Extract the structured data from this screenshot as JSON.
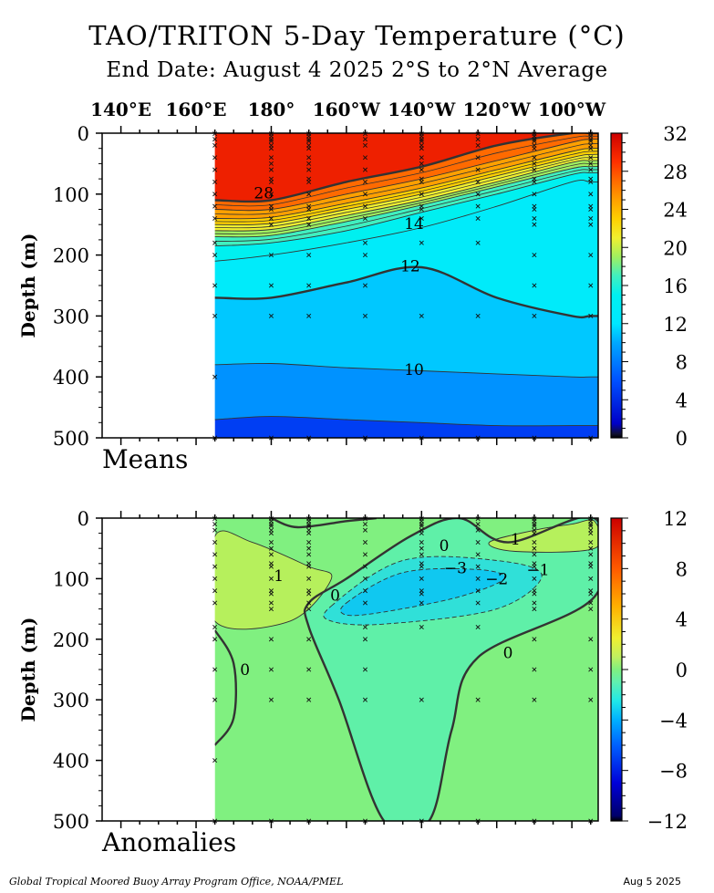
{
  "header": {
    "title": "TAO/TRITON 5-Day Temperature (°C)",
    "subtitle": "End Date: August 4 2025   2°S to 2°N Average"
  },
  "footer": {
    "credit": "Global Tropical Moored Buoy Array Program Office, NOAA/PMEL",
    "date": "Aug  5 2025"
  },
  "colors": {
    "warm": "#dd1111",
    "orange": "#ff8800",
    "yellow": "#f0f030",
    "cyan": "#00f0f0",
    "blue": "#0070e0",
    "dark_blue": "#0000a0",
    "anomaly_neutral": "#80f080",
    "contour": "#333333"
  },
  "chart_data": [
    {
      "type": "heatmap",
      "panel_label": "Means",
      "ylabel": "Depth (m)",
      "x_tick_labels": [
        "140°E",
        "160°E",
        "180°",
        "160°W",
        "140°W",
        "120°W",
        "100°W"
      ],
      "x_ticks_lon": [
        140,
        160,
        180,
        200,
        220,
        240,
        260
      ],
      "xlim_lon": [
        135,
        267
      ],
      "data_start_lon": 165,
      "ylim": [
        500,
        0
      ],
      "y_ticks": [
        0,
        100,
        200,
        300,
        400,
        500
      ],
      "colorbar_ticks": [
        0,
        4,
        8,
        12,
        16,
        20,
        24,
        28,
        32
      ],
      "colorbar_range": [
        0,
        32
      ],
      "contour_labels": [
        "28",
        "14",
        "12",
        "10"
      ],
      "profile_lons": [
        165,
        180,
        200,
        220,
        240,
        260,
        265
      ],
      "isotherm_depths": [
        {
          "value": 28,
          "depth": [
            110,
            110,
            80,
            55,
            20,
            0,
            0
          ]
        },
        {
          "value": 26,
          "depth": [
            125,
            125,
            100,
            75,
            45,
            15,
            10
          ]
        },
        {
          "value": 24,
          "depth": [
            140,
            138,
            115,
            90,
            60,
            30,
            25
          ]
        },
        {
          "value": 22,
          "depth": [
            150,
            148,
            125,
            100,
            70,
            40,
            35
          ]
        },
        {
          "value": 20,
          "depth": [
            160,
            158,
            135,
            110,
            80,
            48,
            45
          ]
        },
        {
          "value": 18,
          "depth": [
            170,
            168,
            145,
            118,
            88,
            58,
            55
          ]
        },
        {
          "value": 16,
          "depth": [
            185,
            180,
            160,
            130,
            100,
            68,
            65
          ]
        },
        {
          "value": 14,
          "depth": [
            210,
            200,
            180,
            155,
            120,
            80,
            80
          ]
        },
        {
          "value": 12,
          "depth": [
            270,
            270,
            245,
            220,
            270,
            300,
            300
          ]
        },
        {
          "value": 10,
          "depth": [
            380,
            378,
            385,
            390,
            395,
            400,
            400
          ]
        },
        {
          "value": 8,
          "depth": [
            470,
            465,
            470,
            475,
            480,
            480,
            480
          ]
        }
      ],
      "sample_lons": [
        165,
        180,
        190,
        205,
        220,
        235,
        250,
        265
      ],
      "sample_depths": [
        [
          1,
          10,
          20,
          40,
          60,
          80,
          100,
          120,
          140,
          180,
          200,
          250,
          300,
          400,
          500
        ],
        [
          1,
          5,
          10,
          13,
          20,
          25,
          40,
          50,
          60,
          75,
          80,
          100,
          120,
          125,
          140,
          150,
          200,
          250,
          300,
          500
        ],
        [
          1,
          5,
          10,
          13,
          20,
          25,
          40,
          50,
          60,
          75,
          80,
          100,
          120,
          125,
          140,
          150,
          200,
          250,
          300,
          500
        ],
        [
          1,
          10,
          20,
          40,
          60,
          80,
          100,
          120,
          140,
          180,
          200,
          250,
          300,
          500
        ],
        [
          1,
          5,
          10,
          13,
          20,
          25,
          40,
          50,
          60,
          75,
          80,
          100,
          120,
          125,
          140,
          180,
          300,
          500
        ],
        [
          1,
          10,
          20,
          40,
          60,
          80,
          100,
          120,
          140,
          180,
          300,
          500
        ],
        [
          1,
          5,
          10,
          13,
          20,
          25,
          40,
          50,
          60,
          75,
          80,
          100,
          120,
          125,
          140,
          150,
          200,
          250,
          300,
          500
        ],
        [
          1,
          5,
          10,
          13,
          20,
          25,
          40,
          50,
          60,
          75,
          80,
          100,
          120,
          125,
          140,
          150,
          200,
          250,
          300,
          500
        ]
      ]
    },
    {
      "type": "heatmap",
      "panel_label": "Anomalies",
      "ylabel": "Depth (m)",
      "xlim_lon": [
        135,
        267
      ],
      "data_start_lon": 165,
      "ylim": [
        500,
        0
      ],
      "y_ticks": [
        0,
        100,
        200,
        300,
        400,
        500
      ],
      "colorbar_ticks": [
        -12,
        -8,
        -4,
        0,
        4,
        8,
        12
      ],
      "colorbar_range": [
        -12,
        12
      ],
      "contour_labels": [
        "1",
        "0",
        "-3",
        "-2",
        "-1",
        "1",
        "0",
        "0",
        "0"
      ],
      "regions": [
        {
          "value": 1,
          "lon": [
            165,
            175,
            190,
            196,
            185,
            165
          ],
          "depth": [
            30,
            40,
            80,
            100,
            170,
            170
          ]
        },
        {
          "value": -3,
          "lon": [
            200,
            215,
            235,
            242,
            230,
            210,
            200
          ],
          "depth": [
            140,
            90,
            85,
            100,
            130,
            155,
            160
          ]
        },
        {
          "value": -2,
          "lon": [
            196,
            215,
            240,
            252,
            240,
            210,
            196
          ],
          "depth": [
            145,
            70,
            70,
            95,
            150,
            175,
            170
          ]
        },
        {
          "value": 1,
          "lon": [
            238,
            250,
            260,
            266,
            266,
            245
          ],
          "depth": [
            40,
            20,
            10,
            5,
            50,
            55
          ]
        },
        {
          "value": 0,
          "lon": [
            190,
            200,
            217,
            230,
            243,
            266,
            266,
            235,
            228,
            222,
            210,
            198,
            190
          ],
          "depth": [
            140,
            100,
            30,
            0,
            40,
            0,
            130,
            230,
            350,
            500,
            500,
            300,
            180
          ]
        }
      ],
      "sample_lons": [
        165,
        180,
        190,
        205,
        220,
        235,
        250,
        265
      ],
      "sample_depths": [
        [
          1,
          10,
          20,
          40,
          60,
          80,
          100,
          120,
          140,
          180,
          200,
          250,
          300,
          400,
          500
        ],
        [
          1,
          5,
          10,
          13,
          20,
          25,
          40,
          50,
          60,
          75,
          80,
          100,
          120,
          125,
          140,
          150,
          200,
          250,
          300,
          500
        ],
        [
          1,
          5,
          10,
          13,
          20,
          25,
          40,
          50,
          60,
          75,
          80,
          100,
          120,
          125,
          140,
          150,
          200,
          250,
          300,
          500
        ],
        [
          1,
          10,
          20,
          40,
          60,
          80,
          100,
          120,
          140,
          180,
          200,
          250,
          300,
          500
        ],
        [
          1,
          5,
          10,
          13,
          20,
          25,
          40,
          50,
          60,
          75,
          80,
          100,
          120,
          125,
          140,
          180,
          300,
          500
        ],
        [
          1,
          10,
          20,
          40,
          60,
          80,
          100,
          120,
          140,
          180,
          300,
          500
        ],
        [
          1,
          5,
          10,
          13,
          20,
          25,
          40,
          50,
          60,
          75,
          80,
          100,
          120,
          125,
          140,
          150,
          200,
          250,
          300,
          500
        ],
        [
          1,
          5,
          10,
          13,
          20,
          25,
          40,
          50,
          60,
          75,
          80,
          100,
          120,
          125,
          140,
          150,
          200,
          250,
          300,
          500
        ]
      ]
    }
  ]
}
